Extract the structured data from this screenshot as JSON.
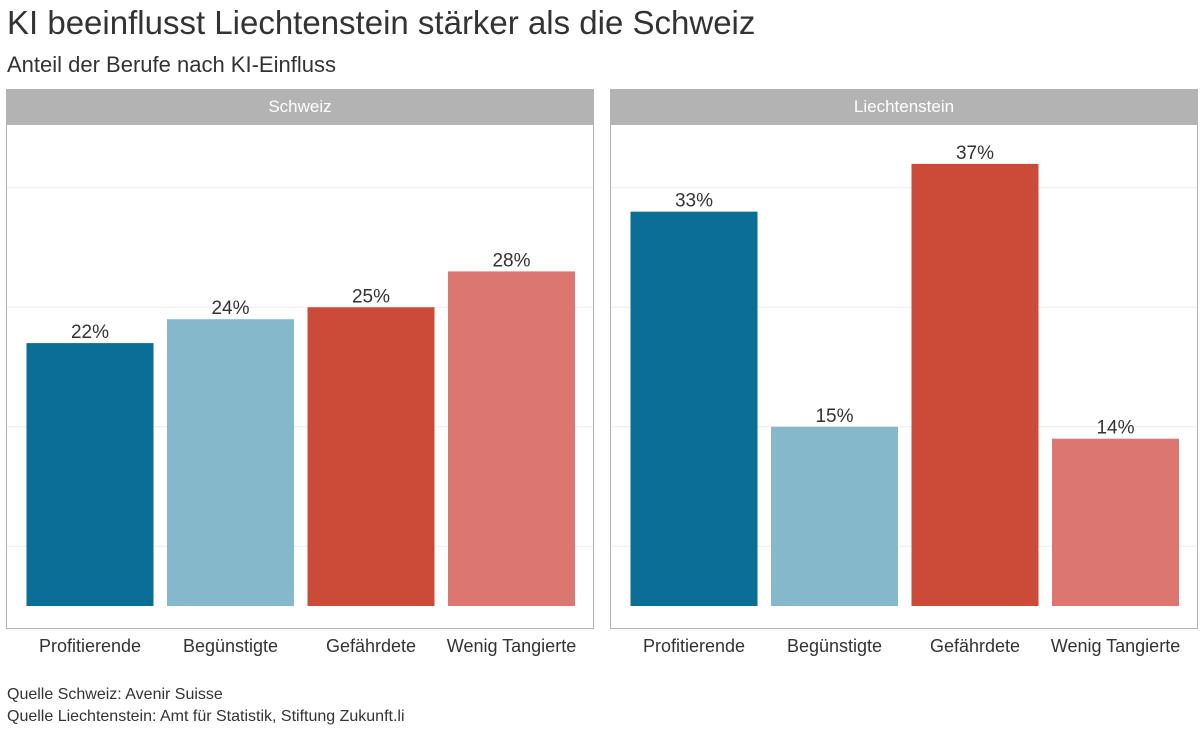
{
  "title": "KI beeinflusst Liechtenstein stärker als die Schweiz",
  "subtitle": "Anteil der Berufe nach KI-Einfluss",
  "colors": {
    "Profitierende": "#0b6e96",
    "Begünstigte": "#86b8cb",
    "Gefährdete": "#cc4a38",
    "Wenig Tangierte": "#db7671",
    "strip": "#b3b3b3",
    "grid": "#ebebeb",
    "border": "#b3b3b3"
  },
  "chart_data": [
    {
      "type": "bar",
      "facet": "Schweiz",
      "categories": [
        "Profitierende",
        "Begünstigte",
        "Gefährdete",
        "Wenig Tangierte"
      ],
      "values": [
        22,
        24,
        25,
        28
      ],
      "labels": [
        "22%",
        "24%",
        "25%",
        "28%"
      ],
      "ylim": [
        0,
        40
      ],
      "grid": true
    },
    {
      "type": "bar",
      "facet": "Liechtenstein",
      "categories": [
        "Profitierende",
        "Begünstigte",
        "Gefährdete",
        "Wenig Tangierte"
      ],
      "values": [
        33,
        15,
        37,
        14
      ],
      "labels": [
        "33%",
        "15%",
        "37%",
        "14%"
      ],
      "ylim": [
        0,
        40
      ],
      "grid": true
    }
  ],
  "sources": [
    "Quelle Schweiz: Avenir Suisse",
    "Quelle Liechtenstein: Amt für Statistik, Stiftung Zukunft.li"
  ]
}
